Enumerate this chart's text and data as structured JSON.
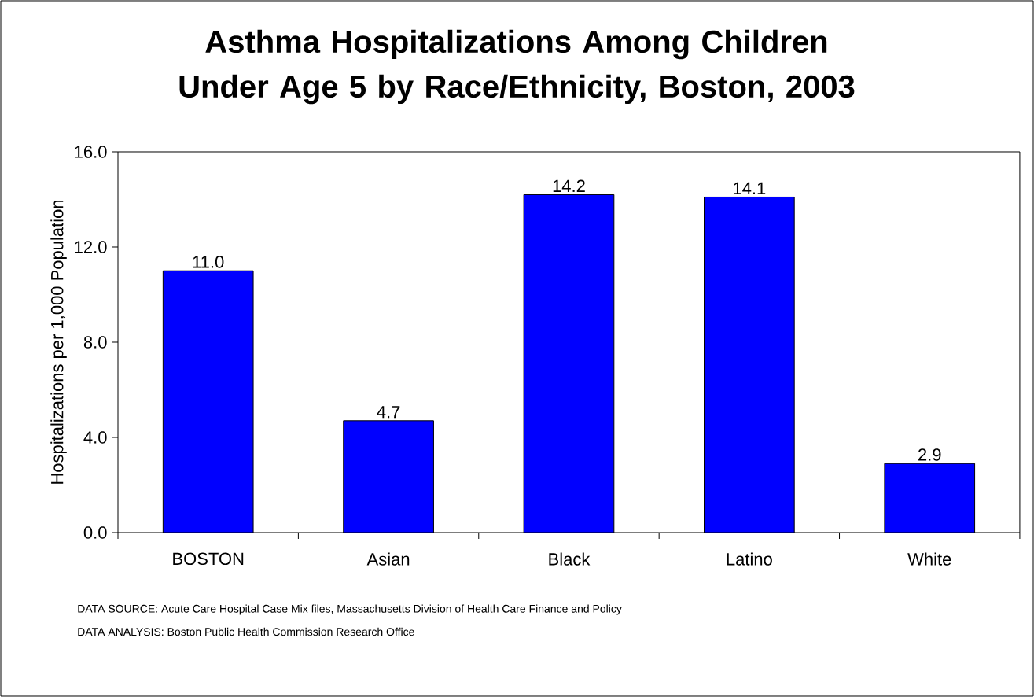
{
  "chart_data": {
    "type": "bar",
    "title": "Asthma Hospitalizations Among Children Under Age 5 by Race/Ethnicity, Boston, 2003",
    "ylabel": "Hospitalizations per 1,000 Population",
    "categories": [
      "BOSTON",
      "Asian",
      "Black",
      "Latino",
      "White"
    ],
    "values": [
      11.0,
      4.7,
      14.2,
      14.1,
      2.9
    ],
    "value_labels": [
      "11.0",
      "4.7",
      "14.2",
      "14.1",
      "2.9"
    ],
    "color": "#0000ff",
    "ylim": [
      0,
      16
    ],
    "yticks": [
      {
        "value": 0,
        "label": "0.0"
      },
      {
        "value": 4,
        "label": "4.0"
      },
      {
        "value": 8,
        "label": "8.0"
      },
      {
        "value": 12,
        "label": "12.0"
      },
      {
        "value": 16,
        "label": "16.0"
      }
    ],
    "grid": false,
    "annotations": [
      "DATA SOURCE: Acute Care Hospital Case Mix files, Massachusetts Division of Health Care Finance and Policy",
      "DATA ANALYSIS:  Boston Public Health Commission Research Office"
    ]
  }
}
